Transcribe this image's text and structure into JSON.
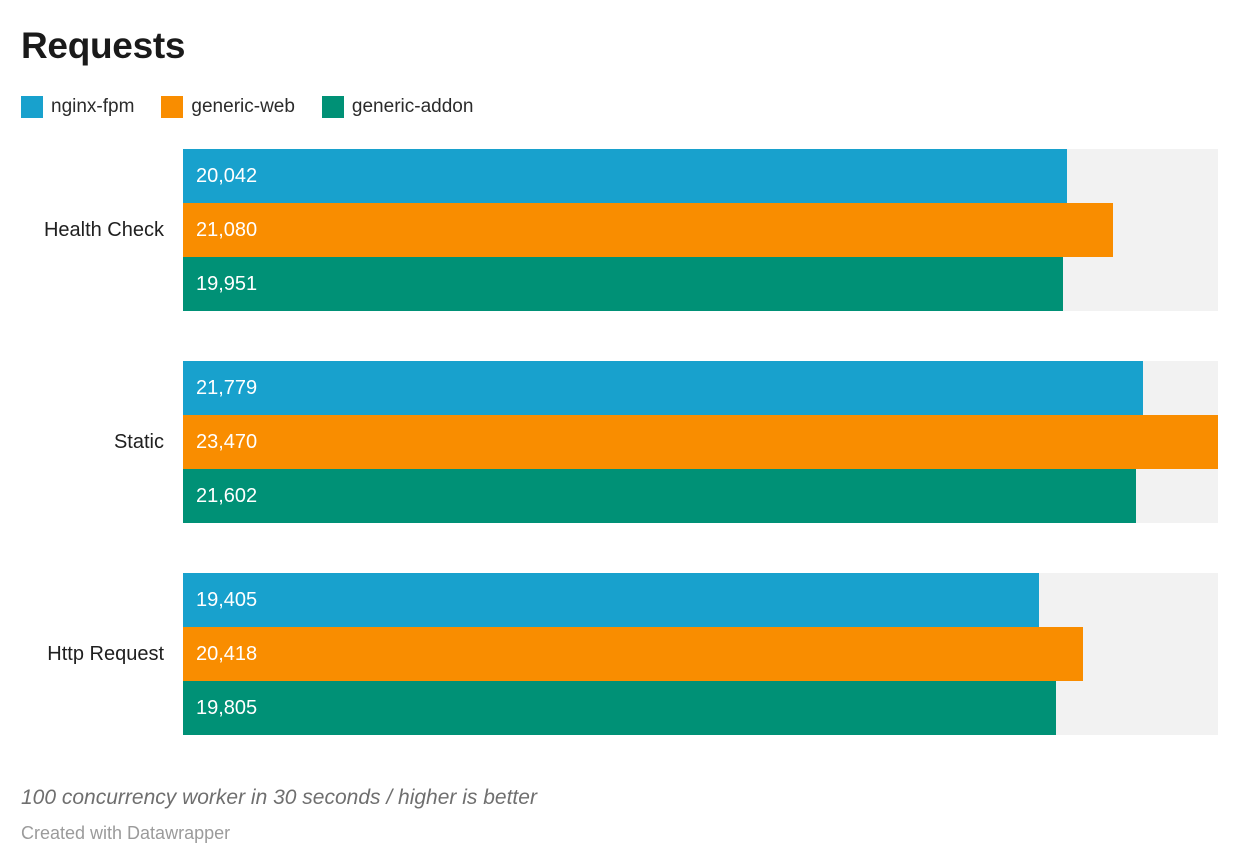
{
  "title": "Requests",
  "chart_data": {
    "type": "bar",
    "orientation": "horizontal",
    "title": "Requests",
    "categories": [
      "Health Check",
      "Static",
      "Http Request"
    ],
    "series": [
      {
        "name": "nginx-fpm",
        "color": "#18a1cd",
        "values": [
          20042,
          21779,
          19405
        ],
        "labels": [
          "20,042",
          "21,779",
          "19,405"
        ]
      },
      {
        "name": "generic-web",
        "color": "#f98d00",
        "values": [
          21080,
          23470,
          20418
        ],
        "labels": [
          "21,080",
          "23,470",
          "20,418"
        ]
      },
      {
        "name": "generic-addon",
        "color": "#009176",
        "values": [
          19951,
          21602,
          19805
        ],
        "labels": [
          "19,951",
          "21,602",
          "19,805"
        ]
      }
    ],
    "xlim": [
      0,
      23470
    ],
    "track_color": "#f2f2f2",
    "grid": false,
    "legend_position": "top",
    "value_labels": "inside-start"
  },
  "footer": {
    "note": "100 concurrency worker in 30 seconds / higher is better",
    "attribution": "Created with Datawrapper"
  }
}
